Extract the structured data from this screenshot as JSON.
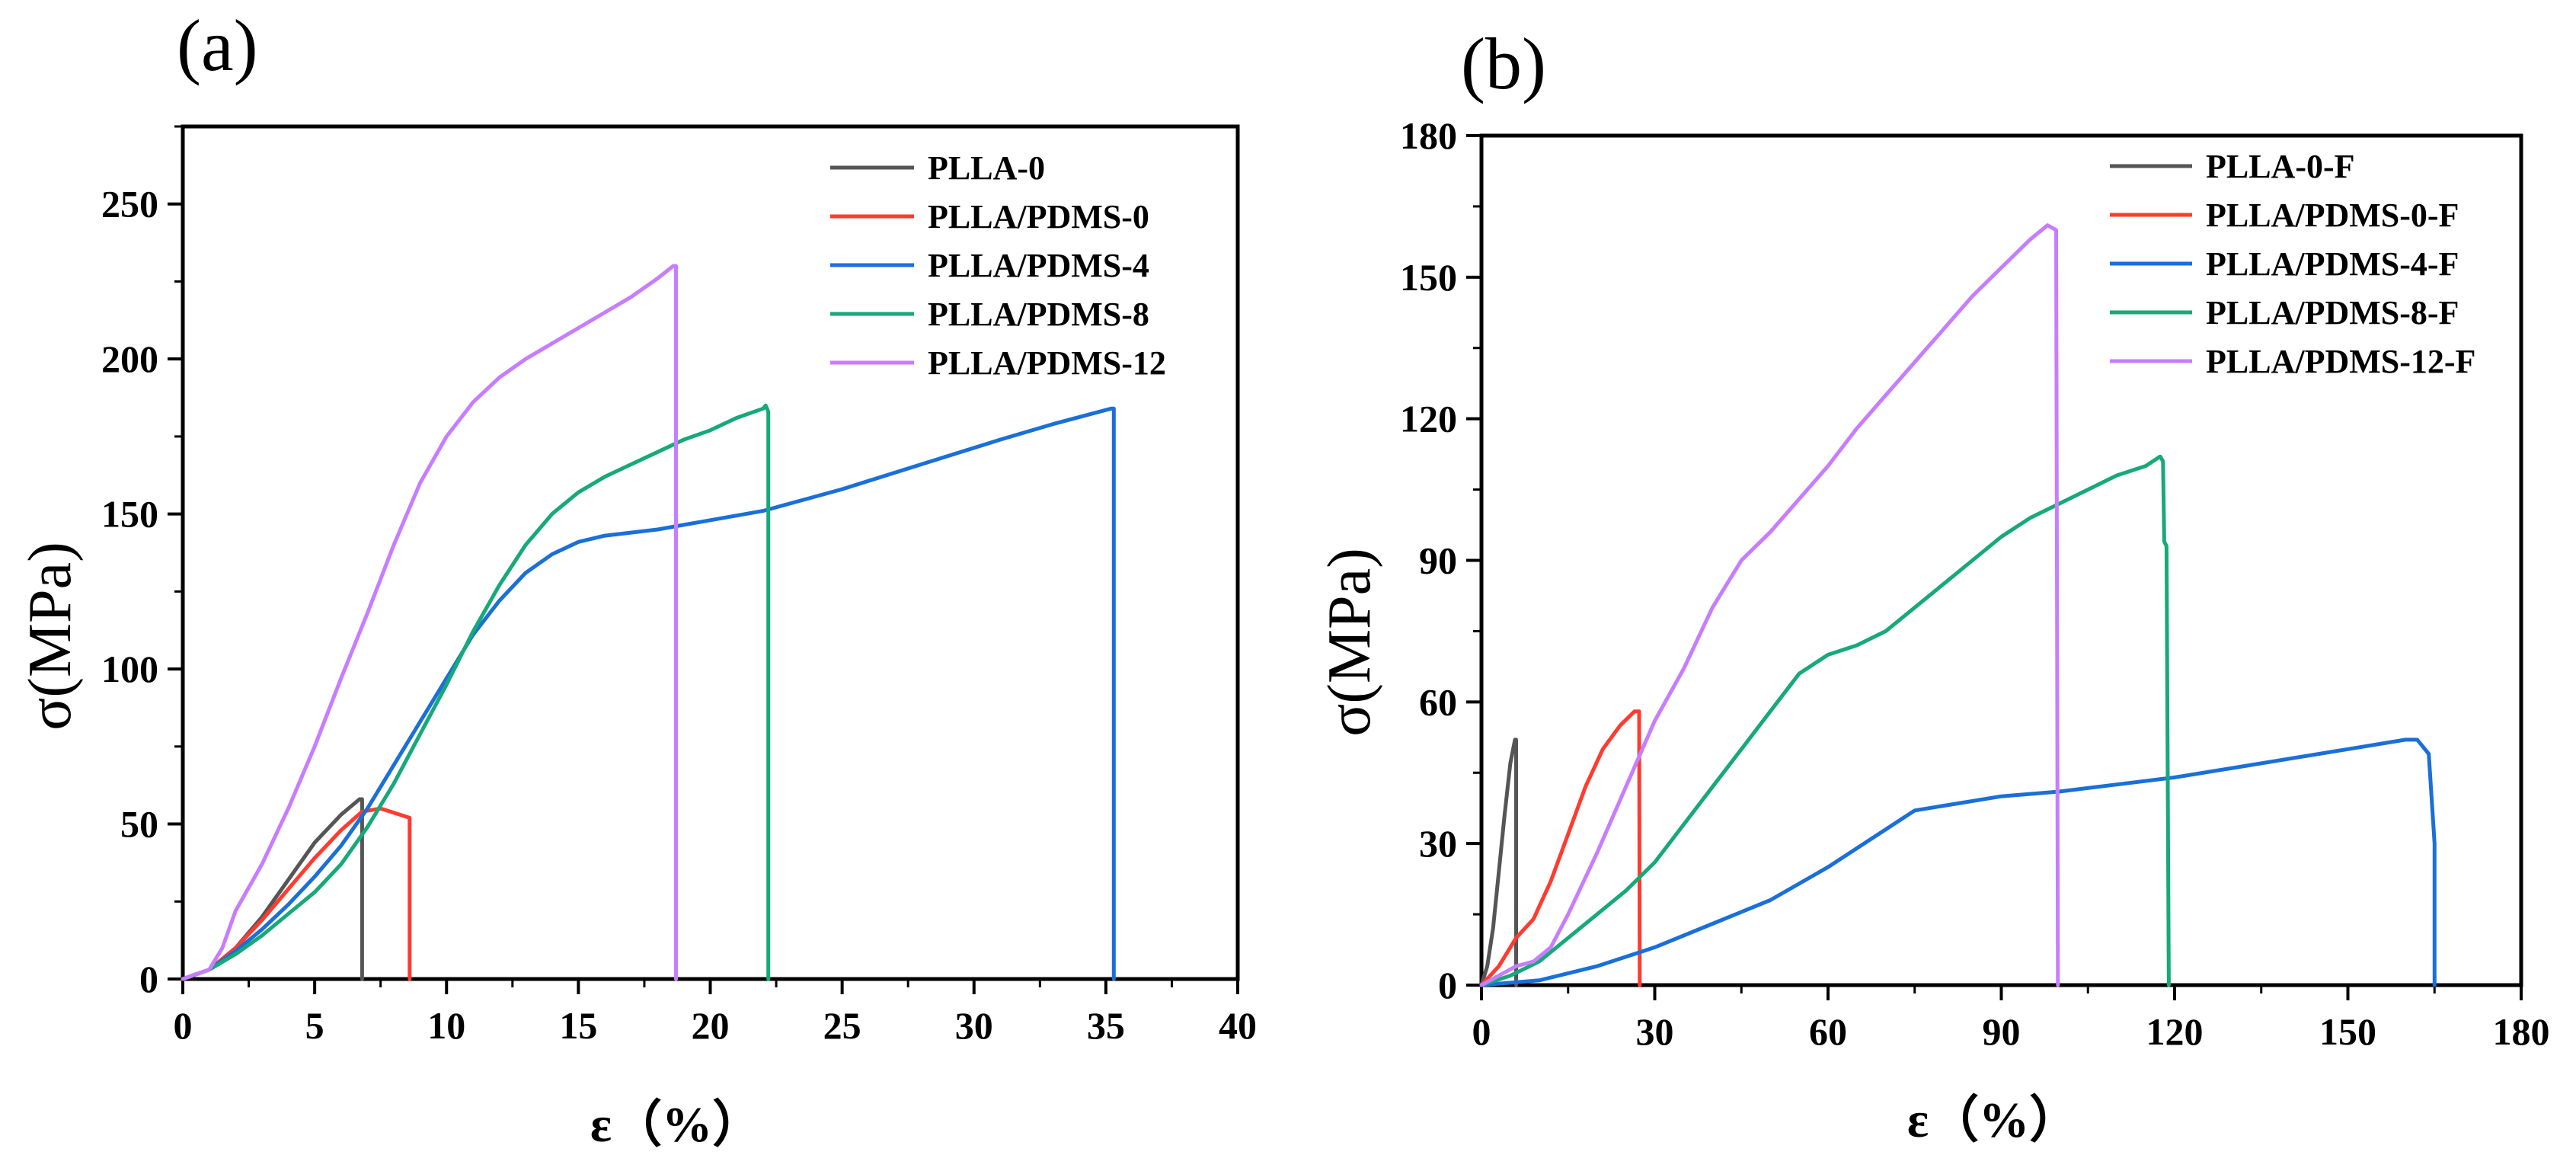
{
  "chart_data": [
    {
      "type": "line",
      "panel_label": "(a)",
      "xlabel": "ε（%）",
      "ylabel": "σ(MPa)",
      "xlim": [
        0,
        40
      ],
      "ylim": [
        0,
        275
      ],
      "xticks": [
        0,
        5,
        10,
        15,
        20,
        25,
        30,
        35,
        40
      ],
      "yticks": [
        0,
        50,
        100,
        150,
        200,
        250
      ],
      "legend_position": "top-right",
      "series": [
        {
          "name": "PLLA-0",
          "color": "#555555",
          "points": [
            [
              0,
              0
            ],
            [
              1,
              3
            ],
            [
              2,
              10
            ],
            [
              3,
              20
            ],
            [
              4,
              32
            ],
            [
              5,
              44
            ],
            [
              6,
              53
            ],
            [
              6.7,
              58
            ],
            [
              6.8,
              58
            ],
            [
              6.8,
              0
            ]
          ]
        },
        {
          "name": "PLLA/PDMS-0",
          "color": "#ff3b30",
          "points": [
            [
              0,
              0
            ],
            [
              1,
              3
            ],
            [
              2,
              10
            ],
            [
              3,
              19
            ],
            [
              4,
              29
            ],
            [
              5,
              39
            ],
            [
              6,
              48
            ],
            [
              6.8,
              54
            ],
            [
              7.5,
              55
            ],
            [
              8.6,
              52
            ],
            [
              8.6,
              0
            ]
          ]
        },
        {
          "name": "PLLA/PDMS-4",
          "color": "#1a6fd8",
          "points": [
            [
              0,
              0
            ],
            [
              1,
              3
            ],
            [
              2,
              9
            ],
            [
              3,
              16
            ],
            [
              4,
              24
            ],
            [
              5,
              33
            ],
            [
              6,
              43
            ],
            [
              7,
              55
            ],
            [
              8,
              69
            ],
            [
              9,
              83
            ],
            [
              10,
              97
            ],
            [
              11,
              111
            ],
            [
              12,
              122
            ],
            [
              13,
              131
            ],
            [
              14,
              137
            ],
            [
              15,
              141
            ],
            [
              16,
              143
            ],
            [
              18,
              145
            ],
            [
              20,
              148
            ],
            [
              22,
              151
            ],
            [
              25,
              158
            ],
            [
              28,
              166
            ],
            [
              31,
              174
            ],
            [
              33,
              179
            ],
            [
              35.2,
              184
            ],
            [
              35.3,
              184
            ],
            [
              35.3,
              0
            ]
          ]
        },
        {
          "name": "PLLA/PDMS-8",
          "color": "#16a97a",
          "points": [
            [
              0,
              0
            ],
            [
              1,
              3
            ],
            [
              2,
              8
            ],
            [
              3,
              14
            ],
            [
              4,
              21
            ],
            [
              5,
              28
            ],
            [
              6,
              37
            ],
            [
              7,
              49
            ],
            [
              8,
              63
            ],
            [
              9,
              79
            ],
            [
              10,
              95
            ],
            [
              11,
              112
            ],
            [
              12,
              127
            ],
            [
              13,
              140
            ],
            [
              14,
              150
            ],
            [
              15,
              157
            ],
            [
              16,
              162
            ],
            [
              17,
              166
            ],
            [
              18,
              170
            ],
            [
              19,
              174
            ],
            [
              20,
              177
            ],
            [
              21,
              181
            ],
            [
              22,
              184
            ],
            [
              22.1,
              185
            ],
            [
              22.2,
              183
            ],
            [
              22.2,
              0
            ]
          ]
        },
        {
          "name": "PLLA/PDMS-12",
          "color": "#c77dff",
          "points": [
            [
              0,
              0
            ],
            [
              1,
              3
            ],
            [
              1.5,
              10
            ],
            [
              2,
              22
            ],
            [
              3,
              37
            ],
            [
              4,
              55
            ],
            [
              5,
              75
            ],
            [
              6,
              97
            ],
            [
              7,
              118
            ],
            [
              8,
              140
            ],
            [
              9,
              160
            ],
            [
              10,
              175
            ],
            [
              11,
              186
            ],
            [
              12,
              194
            ],
            [
              13,
              200
            ],
            [
              14,
              205
            ],
            [
              15,
              210
            ],
            [
              16,
              215
            ],
            [
              17,
              220
            ],
            [
              18,
              226
            ],
            [
              18.6,
              230
            ],
            [
              18.7,
              230
            ],
            [
              18.7,
              0
            ]
          ]
        }
      ]
    },
    {
      "type": "line",
      "panel_label": "(b)",
      "xlabel": "ε（%）",
      "ylabel": "σ(MPa)",
      "xlim": [
        0,
        180
      ],
      "ylim": [
        0,
        180
      ],
      "xticks": [
        0,
        30,
        60,
        90,
        120,
        150,
        180
      ],
      "yticks": [
        0,
        30,
        60,
        90,
        120,
        150,
        180
      ],
      "legend_position": "top-right",
      "series": [
        {
          "name": "PLLA-0-F",
          "color": "#555555",
          "points": [
            [
              0,
              0
            ],
            [
              1,
              4
            ],
            [
              2,
              12
            ],
            [
              3,
              24
            ],
            [
              4,
              36
            ],
            [
              5,
              47
            ],
            [
              5.8,
              52
            ],
            [
              6,
              52
            ],
            [
              6,
              0
            ]
          ]
        },
        {
          "name": "PLLA/PDMS-0-F",
          "color": "#ff3b30",
          "points": [
            [
              0,
              0
            ],
            [
              3,
              4
            ],
            [
              6,
              10
            ],
            [
              9,
              14
            ],
            [
              12,
              22
            ],
            [
              15,
              32
            ],
            [
              18,
              42
            ],
            [
              21,
              50
            ],
            [
              24,
              55
            ],
            [
              26.5,
              58
            ],
            [
              27.3,
              58
            ],
            [
              27.4,
              0
            ]
          ]
        },
        {
          "name": "PLLA/PDMS-4-F",
          "color": "#1a6fd8",
          "points": [
            [
              0,
              0
            ],
            [
              10,
              1
            ],
            [
              20,
              4
            ],
            [
              30,
              8
            ],
            [
              40,
              13
            ],
            [
              50,
              18
            ],
            [
              60,
              25
            ],
            [
              70,
              33
            ],
            [
              75,
              37
            ],
            [
              80,
              38
            ],
            [
              90,
              40
            ],
            [
              100,
              41
            ],
            [
              110,
              42.5
            ],
            [
              120,
              44
            ],
            [
              130,
              46
            ],
            [
              140,
              48
            ],
            [
              150,
              50
            ],
            [
              160,
              52
            ],
            [
              162,
              52
            ],
            [
              164,
              49
            ],
            [
              165,
              30
            ],
            [
              165,
              0
            ]
          ]
        },
        {
          "name": "PLLA/PDMS-8-F",
          "color": "#16a97a",
          "points": [
            [
              0,
              0
            ],
            [
              5,
              2
            ],
            [
              10,
              5
            ],
            [
              15,
              10
            ],
            [
              20,
              15
            ],
            [
              25,
              20
            ],
            [
              30,
              26
            ],
            [
              35,
              34
            ],
            [
              40,
              42
            ],
            [
              45,
              50
            ],
            [
              50,
              58
            ],
            [
              55,
              66
            ],
            [
              60,
              70
            ],
            [
              65,
              72
            ],
            [
              70,
              75
            ],
            [
              75,
              80
            ],
            [
              80,
              85
            ],
            [
              85,
              90
            ],
            [
              90,
              95
            ],
            [
              95,
              99
            ],
            [
              100,
              102
            ],
            [
              105,
              105
            ],
            [
              110,
              108
            ],
            [
              115,
              110
            ],
            [
              117.5,
              112
            ],
            [
              118,
              111
            ],
            [
              118.2,
              94
            ],
            [
              118.6,
              93
            ],
            [
              119,
              0
            ]
          ]
        },
        {
          "name": "PLLA/PDMS-12-F",
          "color": "#c77dff",
          "points": [
            [
              0,
              0
            ],
            [
              3,
              2
            ],
            [
              6,
              4
            ],
            [
              9,
              5
            ],
            [
              12,
              8
            ],
            [
              15,
              15
            ],
            [
              20,
              28
            ],
            [
              25,
              42
            ],
            [
              30,
              56
            ],
            [
              35,
              67
            ],
            [
              40,
              80
            ],
            [
              45,
              90
            ],
            [
              50,
              96
            ],
            [
              55,
              103
            ],
            [
              60,
              110
            ],
            [
              65,
              118
            ],
            [
              70,
              125
            ],
            [
              75,
              132
            ],
            [
              80,
              139
            ],
            [
              85,
              146
            ],
            [
              90,
              152
            ],
            [
              95,
              158
            ],
            [
              98,
              161
            ],
            [
              99.5,
              160
            ],
            [
              99.8,
              0
            ]
          ]
        }
      ]
    }
  ]
}
